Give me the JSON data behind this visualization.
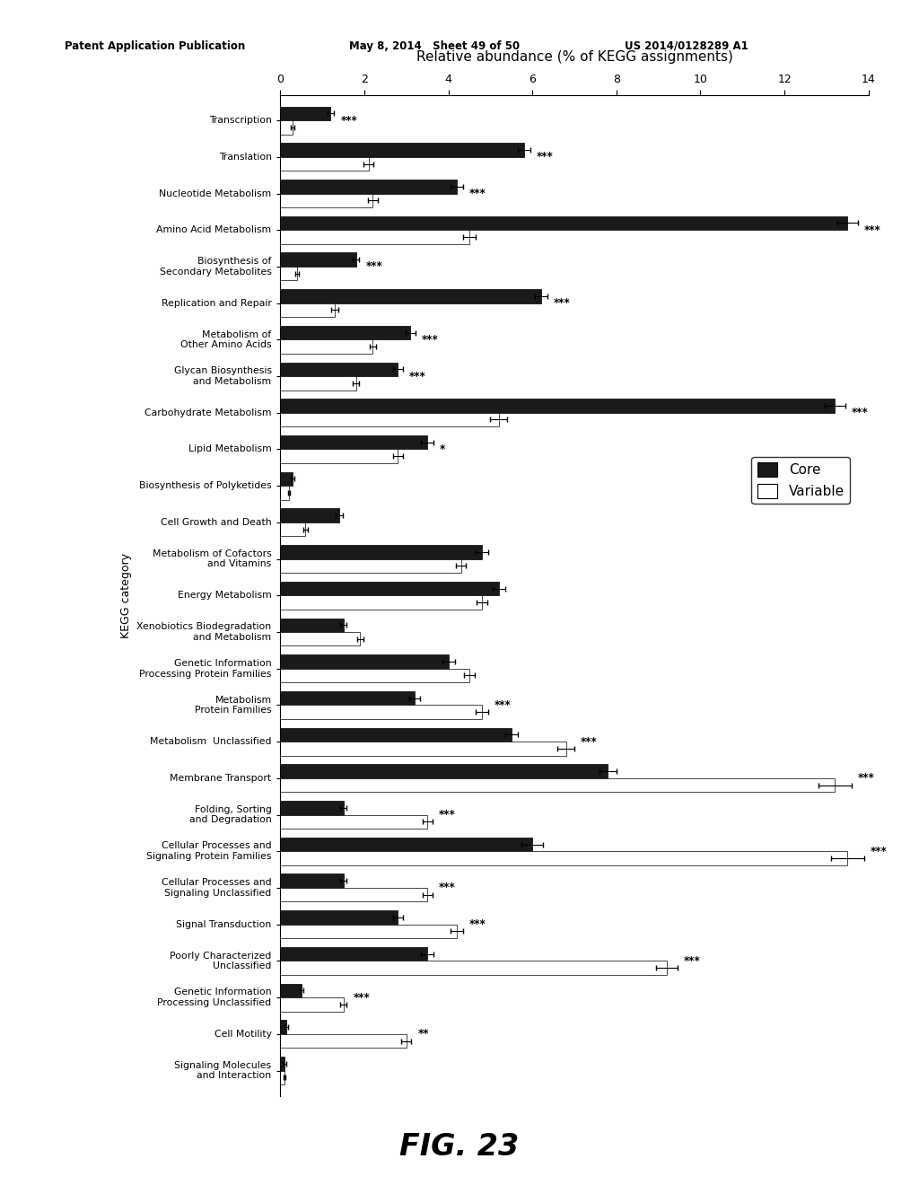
{
  "title": "Relative abundance (% of KEGG assignments)",
  "kegg_label": "KEGG category",
  "xlim": [
    0,
    14
  ],
  "xticks": [
    0,
    2,
    4,
    6,
    8,
    10,
    12,
    14
  ],
  "patent_header_left": "Patent Application Publication",
  "patent_header_mid": "May 8, 2014   Sheet 49 of 50",
  "patent_header_right": "US 2014/0128289 A1",
  "fig_label": "FIG. 23",
  "categories": [
    "Transcription",
    "Translation",
    "Nucleotide Metabolism",
    "Amino Acid Metabolism",
    "Biosynthesis of\nSecondary Metabolites",
    "Replication and Repair",
    "Metabolism of\nOther Amino Acids",
    "Glycan Biosynthesis\nand Metabolism",
    "Carbohydrate Metabolism",
    "Lipid Metabolism",
    "Biosynthesis of Polyketides",
    "Cell Growth and Death",
    "Metabolism of Cofactors\nand Vitamins",
    "Energy Metabolism",
    "Xenobiotics Biodegradation\nand Metabolism",
    "Genetic Information\nProcessing Protein Families",
    "Metabolism\nProtein Families",
    "Metabolism  Unclassified",
    "Membrane Transport",
    "Folding, Sorting\nand Degradation",
    "Cellular Processes and\nSignaling Protein Families",
    "Cellular Processes and\nSignaling Unclassified",
    "Signal Transduction",
    "Poorly Characterized\nUnclassified",
    "Genetic Information\nProcessing Unclassified",
    "Cell Motility",
    "Signaling Molecules\nand Interaction"
  ],
  "core_values": [
    1.2,
    5.8,
    4.2,
    13.5,
    1.8,
    6.2,
    3.1,
    2.8,
    13.2,
    3.5,
    0.3,
    1.4,
    4.8,
    5.2,
    1.5,
    4.0,
    3.2,
    5.5,
    7.8,
    1.5,
    6.0,
    1.5,
    2.8,
    3.5,
    0.5,
    0.15,
    0.1
  ],
  "variable_values": [
    0.3,
    2.1,
    2.2,
    4.5,
    0.4,
    1.3,
    2.2,
    1.8,
    5.2,
    2.8,
    0.2,
    0.6,
    4.3,
    4.8,
    1.9,
    4.5,
    4.8,
    6.8,
    13.2,
    3.5,
    13.5,
    3.5,
    4.2,
    9.2,
    1.5,
    3.0,
    0.1
  ],
  "core_errors": [
    0.08,
    0.15,
    0.15,
    0.25,
    0.08,
    0.15,
    0.12,
    0.12,
    0.25,
    0.15,
    0.04,
    0.08,
    0.15,
    0.15,
    0.08,
    0.15,
    0.12,
    0.15,
    0.2,
    0.08,
    0.25,
    0.08,
    0.12,
    0.15,
    0.04,
    0.04,
    0.04
  ],
  "variable_errors": [
    0.04,
    0.12,
    0.12,
    0.15,
    0.04,
    0.08,
    0.08,
    0.08,
    0.2,
    0.12,
    0.02,
    0.06,
    0.12,
    0.12,
    0.08,
    0.12,
    0.15,
    0.2,
    0.4,
    0.12,
    0.4,
    0.12,
    0.15,
    0.25,
    0.08,
    0.12,
    0.02
  ],
  "significance": [
    "***",
    "***",
    "***",
    "***",
    "***",
    "***",
    "***",
    "***",
    "***",
    "*",
    "",
    "",
    "",
    "",
    "",
    "",
    "***",
    "***",
    "***",
    "***",
    "***",
    "***",
    "***",
    "***",
    "***",
    "**",
    ""
  ],
  "core_color": "#1a1a1a",
  "variable_color": "#ffffff",
  "bar_height": 0.38,
  "background_color": "#ffffff"
}
